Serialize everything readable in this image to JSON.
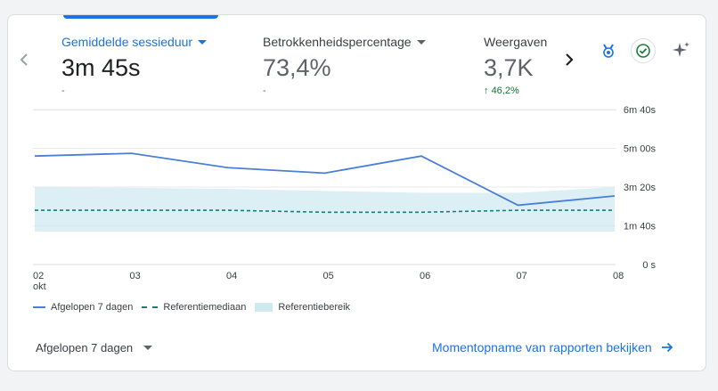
{
  "metrics": [
    {
      "label": "Gemiddelde sessieduur",
      "value": "3m 45s",
      "sub": "-",
      "active": true
    },
    {
      "label": "Betrokkenheidspercentage",
      "value": "73,4%",
      "sub": "-",
      "active": false
    },
    {
      "label": "Weergaven",
      "value": "3,7K",
      "sub": "46,2%",
      "trend": "up",
      "active": false
    }
  ],
  "icons": {
    "prev": "chevron-left-icon",
    "next": "chevron-right-icon",
    "badge": "medal-icon",
    "check": "check-circle-icon",
    "sparkle": "sparkle-icon"
  },
  "colors": {
    "accent": "#1a73e8",
    "series": "#4a7fd6",
    "median": "#12807c",
    "range": "#cfe9f0",
    "positive": "#137333"
  },
  "chart_data": {
    "type": "line",
    "x": [
      "02",
      "03",
      "04",
      "05",
      "06",
      "07",
      "08"
    ],
    "x_sublabel_first": "okt",
    "y_ticks": [
      "6m 40s",
      "5m 00s",
      "3m 20s",
      "1m 40s",
      "0 s"
    ],
    "y_tick_values": [
      400,
      300,
      200,
      100,
      0
    ],
    "ylim": [
      0,
      400
    ],
    "series": [
      {
        "name": "Afgelopen 7 dagen",
        "values": [
          280,
          287,
          250,
          236,
          280,
          153,
          177
        ]
      },
      {
        "name": "Referentiemediaan",
        "values": [
          140,
          140,
          140,
          135,
          135,
          140,
          140
        ]
      }
    ],
    "band": {
      "name": "Referentiebereik",
      "low": [
        85,
        85,
        85,
        85,
        85,
        85,
        85
      ],
      "high": [
        200,
        198,
        195,
        190,
        185,
        185,
        200
      ]
    },
    "grid": true,
    "legend_position": "bottom-left"
  },
  "legend": [
    "Afgelopen 7 dagen",
    "Referentiemediaan",
    "Referentiebereik"
  ],
  "footer": {
    "range_label": "Afgelopen 7 dagen",
    "link_label": "Momentopname van rapporten bekijken"
  }
}
